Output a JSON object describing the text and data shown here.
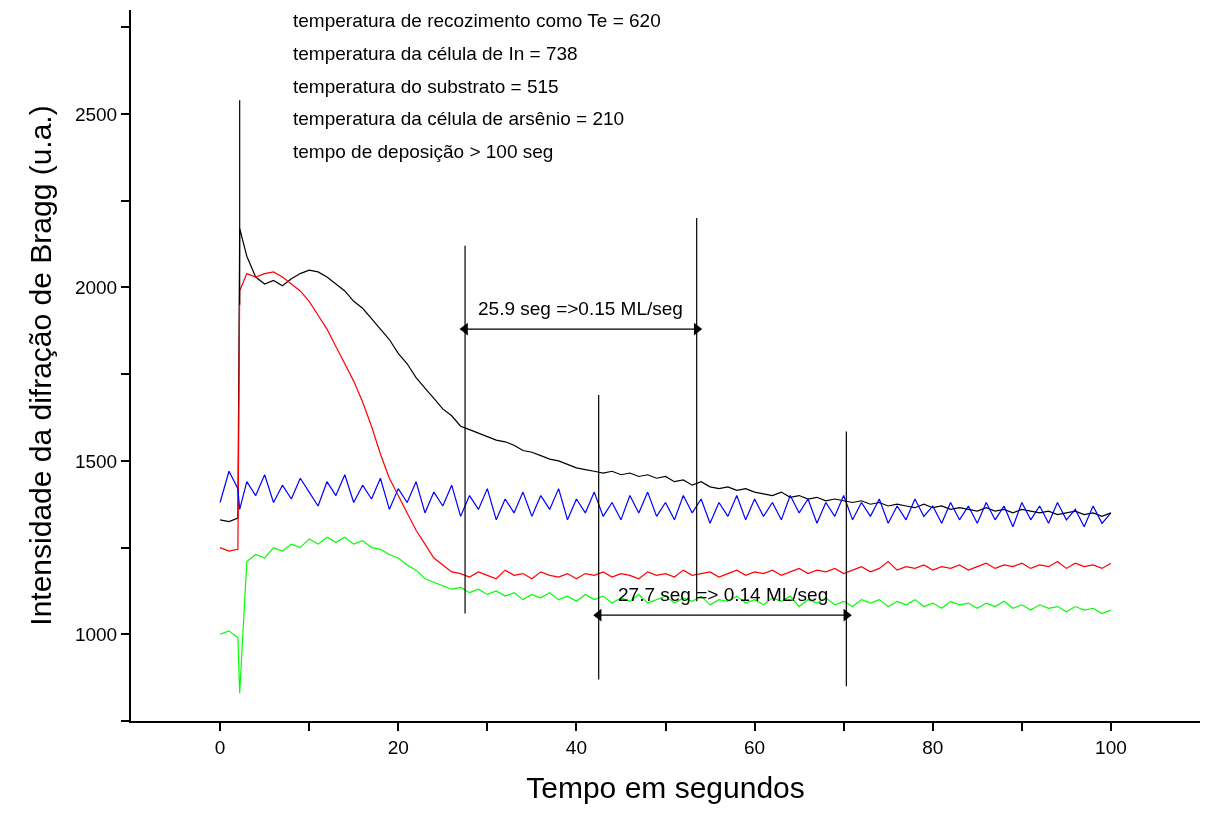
{
  "chart_data": {
    "type": "line",
    "xlabel": "Tempo em segundos",
    "ylabel": "Intensidade da difração de Bragg (u.a.)",
    "annotations": [
      "temperatura de recozimento como Te = 620",
      "temperatura da célula de In = 738",
      "temperatura do substrato = 515",
      "temperatura da célula de arsênio = 210",
      "tempo de deposição > 100 seg",
      {
        "text": "25.9 seg =>0.15 ML/seg",
        "x": 40.5,
        "y": 1880
      },
      {
        "text": "27.7 seg => 0.14 ML/seg",
        "x": 56.4,
        "y": 1055
      }
    ],
    "x": [
      0,
      1,
      2,
      2.2,
      3,
      4,
      5,
      6,
      7,
      8,
      9,
      10,
      11,
      12,
      13,
      14,
      15,
      16,
      17,
      18,
      19,
      20,
      21,
      22,
      23,
      24,
      25,
      26,
      27,
      28,
      29,
      30,
      31,
      32,
      33,
      34,
      35,
      36,
      37,
      38,
      39,
      40,
      41,
      42,
      43,
      44,
      45,
      46,
      47,
      48,
      49,
      50,
      51,
      52,
      53,
      54,
      55,
      56,
      57,
      58,
      59,
      60,
      61,
      62,
      63,
      64,
      65,
      66,
      67,
      68,
      69,
      70,
      71,
      72,
      73,
      74,
      75,
      76,
      77,
      78,
      79,
      80,
      81,
      82,
      83,
      84,
      85,
      86,
      87,
      88,
      89,
      90,
      91,
      92,
      93,
      94,
      95,
      96,
      97,
      98,
      99,
      100
    ],
    "series": [
      {
        "color": "#000000",
        "values": [
          1330,
          1325,
          1335,
          2170,
          2090,
          2030,
          2010,
          2020,
          2005,
          2025,
          2040,
          2050,
          2045,
          2030,
          2010,
          1990,
          1960,
          1940,
          1910,
          1880,
          1850,
          1810,
          1780,
          1740,
          1710,
          1680,
          1650,
          1630,
          1600,
          1590,
          1580,
          1570,
          1560,
          1555,
          1545,
          1530,
          1525,
          1515,
          1505,
          1500,
          1490,
          1480,
          1475,
          1470,
          1465,
          1470,
          1460,
          1465,
          1455,
          1460,
          1450,
          1455,
          1440,
          1445,
          1430,
          1440,
          1425,
          1420,
          1425,
          1415,
          1420,
          1410,
          1405,
          1400,
          1410,
          1395,
          1400,
          1390,
          1395,
          1385,
          1390,
          1385,
          1380,
          1385,
          1375,
          1380,
          1370,
          1375,
          1370,
          1365,
          1375,
          1365,
          1370,
          1360,
          1365,
          1360,
          1355,
          1365,
          1355,
          1360,
          1350,
          1360,
          1355,
          1350,
          1355,
          1345,
          1350,
          1355,
          1345,
          1350,
          1340,
          1350
        ]
      },
      {
        "color": "#ff0000",
        "values": [
          1250,
          1240,
          1245,
          1990,
          2040,
          2030,
          2040,
          2045,
          2030,
          2010,
          1990,
          1960,
          1920,
          1880,
          1830,
          1780,
          1730,
          1670,
          1600,
          1520,
          1450,
          1400,
          1350,
          1300,
          1260,
          1220,
          1200,
          1180,
          1175,
          1165,
          1180,
          1170,
          1160,
          1185,
          1170,
          1175,
          1160,
          1180,
          1170,
          1165,
          1175,
          1160,
          1175,
          1170,
          1180,
          1165,
          1175,
          1170,
          1160,
          1180,
          1170,
          1175,
          1165,
          1185,
          1170,
          1175,
          1180,
          1165,
          1175,
          1185,
          1170,
          1180,
          1175,
          1185,
          1170,
          1180,
          1190,
          1175,
          1185,
          1180,
          1190,
          1175,
          1185,
          1195,
          1180,
          1190,
          1210,
          1185,
          1195,
          1190,
          1200,
          1185,
          1195,
          1190,
          1200,
          1185,
          1195,
          1205,
          1190,
          1200,
          1195,
          1205,
          1190,
          1200,
          1195,
          1210,
          1190,
          1205,
          1195,
          1200,
          1190,
          1205
        ]
      },
      {
        "color": "#0000ff",
        "values": [
          1380,
          1470,
          1420,
          1360,
          1440,
          1400,
          1460,
          1380,
          1430,
          1390,
          1450,
          1410,
          1370,
          1440,
          1400,
          1460,
          1380,
          1430,
          1390,
          1450,
          1360,
          1420,
          1380,
          1440,
          1350,
          1410,
          1370,
          1430,
          1340,
          1400,
          1360,
          1420,
          1330,
          1390,
          1350,
          1410,
          1340,
          1400,
          1360,
          1420,
          1330,
          1390,
          1350,
          1410,
          1340,
          1380,
          1330,
          1400,
          1350,
          1410,
          1340,
          1380,
          1330,
          1400,
          1350,
          1390,
          1320,
          1380,
          1340,
          1400,
          1330,
          1390,
          1340,
          1380,
          1330,
          1400,
          1350,
          1390,
          1320,
          1380,
          1340,
          1400,
          1330,
          1380,
          1340,
          1390,
          1320,
          1370,
          1330,
          1390,
          1340,
          1370,
          1320,
          1380,
          1330,
          1370,
          1320,
          1380,
          1330,
          1370,
          1310,
          1380,
          1330,
          1370,
          1320,
          1380,
          1330,
          1360,
          1310,
          1370,
          1320,
          1350
        ]
      },
      {
        "color": "#00ff00",
        "values": [
          1000,
          1010,
          990,
          830,
          1210,
          1230,
          1220,
          1250,
          1240,
          1260,
          1250,
          1275,
          1260,
          1280,
          1265,
          1280,
          1260,
          1270,
          1250,
          1245,
          1230,
          1220,
          1200,
          1185,
          1160,
          1150,
          1140,
          1130,
          1135,
          1120,
          1130,
          1115,
          1125,
          1110,
          1120,
          1100,
          1115,
          1105,
          1120,
          1100,
          1110,
          1095,
          1115,
          1100,
          1110,
          1090,
          1105,
          1095,
          1115,
          1090,
          1100,
          1110,
          1090,
          1105,
          1095,
          1110,
          1085,
          1100,
          1095,
          1110,
          1090,
          1100,
          1085,
          1105,
          1095,
          1110,
          1080,
          1100,
          1090,
          1105,
          1085,
          1095,
          1080,
          1100,
          1090,
          1100,
          1080,
          1095,
          1085,
          1100,
          1080,
          1090,
          1075,
          1095,
          1085,
          1090,
          1075,
          1090,
          1080,
          1095,
          1075,
          1085,
          1070,
          1085,
          1075,
          1080,
          1065,
          1080,
          1070,
          1075,
          1060,
          1070
        ]
      },
      {
        "color": "#000000",
        "x": [
          2.2,
          2.2
        ],
        "values": [
          1950,
          2540
        ]
      },
      {
        "color": "#000000",
        "x": [
          27.5,
          27.5
        ],
        "values": [
          1060,
          2120
        ]
      },
      {
        "color": "#000000",
        "x": [
          53.5,
          53.5
        ],
        "values": [
          1095,
          2200
        ]
      },
      {
        "color": "#000000",
        "x": [
          42.5,
          42.5
        ],
        "values": [
          870,
          1690
        ]
      },
      {
        "color": "#000000",
        "x": [
          70.3,
          70.3
        ],
        "values": [
          850,
          1585
        ]
      },
      {
        "color": "#000000",
        "x": [
          27.5,
          53.5
        ],
        "values": [
          1880,
          1880
        ],
        "marker": "triangle"
      },
      {
        "color": "#000000",
        "x": [
          42.5,
          70.3
        ],
        "values": [
          1055,
          1055
        ],
        "marker": "triangle"
      }
    ],
    "xlim": [
      -10,
      110
    ],
    "xticks": [
      0,
      {
        "value": 10,
        "label": null
      },
      20,
      {
        "value": 30,
        "label": null
      },
      40,
      {
        "value": 50,
        "label": null
      },
      60,
      {
        "value": 70,
        "label": null
      },
      80,
      {
        "value": 90,
        "label": null
      },
      100
    ],
    "ylim": [
      750,
      2800
    ],
    "yticks": [
      {
        "value": 750,
        "label": null
      },
      1000,
      {
        "value": 1250,
        "label": null
      },
      1500,
      {
        "value": 1750,
        "label": null
      },
      2000,
      {
        "value": 2250,
        "label": null
      },
      2500,
      {
        "value": 2750,
        "label": null
      }
    ],
    "grid": false,
    "marker": "none"
  }
}
